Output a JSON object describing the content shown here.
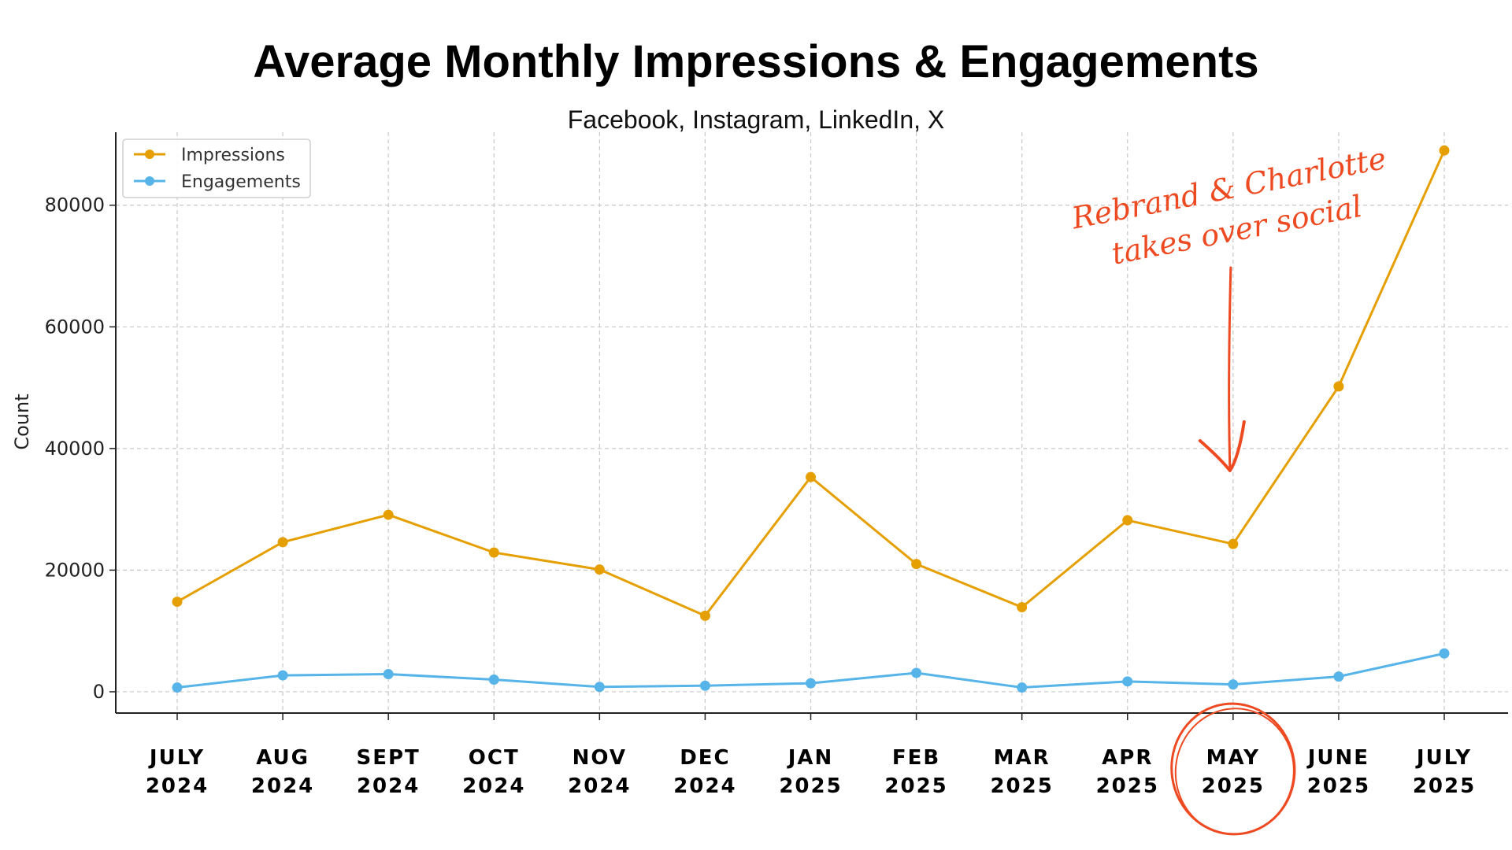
{
  "chart_data": {
    "type": "line",
    "title": "Average Monthly Impressions & Engagements",
    "subtitle": "Facebook, Instagram, LinkedIn, X",
    "xlabel": "",
    "ylabel": "Count",
    "ylim": [
      -3500,
      92000
    ],
    "yticks": [
      0,
      20000,
      40000,
      60000,
      80000
    ],
    "ytick_labels": [
      "0",
      "20000",
      "40000",
      "60000",
      "80000"
    ],
    "grid": true,
    "legend_position": "top-left",
    "categories": [
      [
        "JULY",
        "2024"
      ],
      [
        "AUG",
        "2024"
      ],
      [
        "SEPT",
        "2024"
      ],
      [
        "OCT",
        "2024"
      ],
      [
        "NOV",
        "2024"
      ],
      [
        "DEC",
        "2024"
      ],
      [
        "JAN",
        "2025"
      ],
      [
        "FEB",
        "2025"
      ],
      [
        "MAR",
        "2025"
      ],
      [
        "APR",
        "2025"
      ],
      [
        "MAY",
        "2025"
      ],
      [
        "JUNE",
        "2025"
      ],
      [
        "JULY",
        "2025"
      ]
    ],
    "series": [
      {
        "name": "Impressions",
        "color": "#e69f00",
        "values": [
          14800,
          24600,
          29100,
          22900,
          20100,
          12500,
          35300,
          21000,
          13900,
          28200,
          24300,
          50200,
          89000
        ]
      },
      {
        "name": "Engagements",
        "color": "#56b4e9",
        "values": [
          700,
          2700,
          2900,
          2000,
          800,
          1000,
          1400,
          3100,
          700,
          1700,
          1200,
          2500,
          6300
        ]
      }
    ],
    "annotations": [
      {
        "text_lines": [
          "Rebrand & Charlotte",
          "takes over social"
        ],
        "target_category_index": 10,
        "color": "#ee4a22"
      }
    ],
    "highlighted_category_index": 10,
    "highlight_color": "#ee4a22"
  }
}
